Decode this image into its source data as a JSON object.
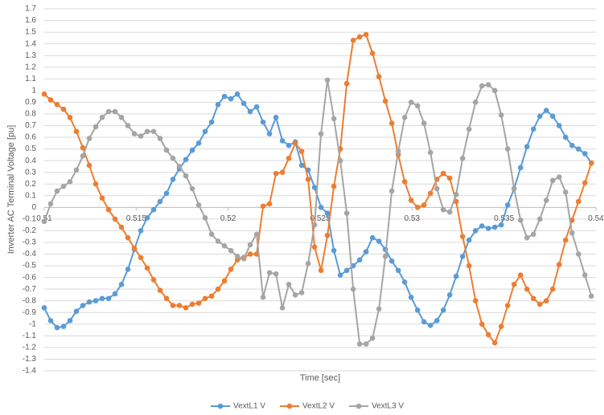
{
  "chart_data": {
    "type": "line",
    "xlabel": "Time [sec]",
    "ylabel": "Inverter AC Terminal Voltage [pu]",
    "xlim": [
      0.51,
      0.54
    ],
    "xticks": [
      0.51,
      0.515,
      0.52,
      0.525,
      0.53,
      0.535,
      0.54
    ],
    "ylim": [
      -1.4,
      1.7
    ],
    "yticks": [
      -1.4,
      -1.3,
      -1.2,
      -1.1,
      -1,
      -0.9,
      -0.8,
      -0.7,
      -0.6,
      -0.5,
      -0.4,
      -0.3,
      -0.2,
      -0.1,
      0,
      0.1,
      0.2,
      0.3,
      0.4,
      0.5,
      0.6,
      0.7,
      0.8,
      0.9,
      1,
      1.1,
      1.2,
      1.3,
      1.4,
      1.5,
      1.6,
      1.7
    ],
    "grid": true,
    "legend": "bottom",
    "x": [
      0.51,
      0.51035,
      0.5107,
      0.51105,
      0.5114,
      0.51175,
      0.5121,
      0.51245,
      0.5128,
      0.51315,
      0.5135,
      0.51385,
      0.5142,
      0.51455,
      0.5149,
      0.51525,
      0.5156,
      0.51595,
      0.5163,
      0.51665,
      0.517,
      0.51735,
      0.5177,
      0.51805,
      0.5184,
      0.51875,
      0.5191,
      0.51945,
      0.5198,
      0.52015,
      0.5205,
      0.52085,
      0.5212,
      0.52155,
      0.5219,
      0.52225,
      0.5226,
      0.52295,
      0.5233,
      0.52365,
      0.524,
      0.52435,
      0.5247,
      0.52505,
      0.5254,
      0.52575,
      0.5261,
      0.52645,
      0.5268,
      0.52715,
      0.5275,
      0.52785,
      0.5282,
      0.52855,
      0.5289,
      0.52925,
      0.5296,
      0.52995,
      0.5303,
      0.53065,
      0.531,
      0.53135,
      0.5317,
      0.53205,
      0.5324,
      0.53275,
      0.5331,
      0.53345,
      0.5338,
      0.53415,
      0.5345,
      0.53485,
      0.5352,
      0.53555,
      0.5359,
      0.53625,
      0.5366,
      0.53695,
      0.5373,
      0.53765,
      0.538,
      0.53835,
      0.5387,
      0.53905,
      0.5394,
      0.53975
    ],
    "series": [
      {
        "name": "VextL1 V",
        "color": "#5b9bd5",
        "values": [
          -0.86,
          -0.97,
          -1.03,
          -1.02,
          -0.97,
          -0.89,
          -0.84,
          -0.81,
          -0.8,
          -0.78,
          -0.78,
          -0.74,
          -0.66,
          -0.53,
          -0.36,
          -0.2,
          -0.09,
          -0.02,
          0.05,
          0.12,
          0.24,
          0.33,
          0.41,
          0.49,
          0.55,
          0.65,
          0.73,
          0.88,
          0.95,
          0.93,
          0.97,
          0.89,
          0.82,
          0.86,
          0.73,
          0.63,
          0.77,
          0.57,
          0.53,
          0.56,
          0.36,
          0.32,
          0.17,
          0.0,
          -0.05,
          -0.37,
          -0.58,
          -0.54,
          -0.5,
          -0.45,
          -0.38,
          -0.26,
          -0.29,
          -0.36,
          -0.46,
          -0.54,
          -0.64,
          -0.77,
          -0.88,
          -0.98,
          -1.01,
          -0.97,
          -0.88,
          -0.75,
          -0.59,
          -0.42,
          -0.28,
          -0.2,
          -0.16,
          -0.18,
          -0.17,
          -0.15,
          0.02,
          0.16,
          0.34,
          0.52,
          0.67,
          0.78,
          0.83,
          0.78,
          0.7,
          0.6,
          0.53,
          0.5,
          0.46,
          0.38
        ]
      },
      {
        "name": "VextL2 V",
        "color": "#ed7d31",
        "values": [
          0.97,
          0.92,
          0.88,
          0.84,
          0.77,
          0.65,
          0.51,
          0.36,
          0.2,
          0.08,
          -0.02,
          -0.1,
          -0.17,
          -0.26,
          -0.35,
          -0.43,
          -0.52,
          -0.62,
          -0.71,
          -0.78,
          -0.84,
          -0.84,
          -0.86,
          -0.83,
          -0.82,
          -0.78,
          -0.76,
          -0.7,
          -0.63,
          -0.53,
          -0.45,
          -0.43,
          -0.4,
          -0.4,
          0.01,
          0.03,
          0.29,
          0.3,
          0.42,
          0.55,
          0.48,
          0.24,
          -0.34,
          -0.54,
          -0.24,
          0.18,
          0.5,
          1.06,
          1.43,
          1.46,
          1.48,
          1.32,
          1.12,
          0.91,
          0.72,
          0.45,
          0.22,
          0.06,
          0.0,
          0.02,
          0.12,
          0.24,
          0.29,
          0.25,
          0.05,
          -0.25,
          -0.5,
          -0.8,
          -1.0,
          -1.09,
          -1.16,
          -1.02,
          -0.84,
          -0.66,
          -0.58,
          -0.7,
          -0.78,
          -0.83,
          -0.8,
          -0.7,
          -0.49,
          -0.28,
          -0.11,
          0.05,
          0.21,
          0.38
        ]
      },
      {
        "name": "VextL3 V",
        "color": "#a5a5a5",
        "values": [
          -0.12,
          0.03,
          0.14,
          0.18,
          0.22,
          0.32,
          0.44,
          0.59,
          0.69,
          0.77,
          0.82,
          0.82,
          0.77,
          0.7,
          0.63,
          0.61,
          0.65,
          0.65,
          0.59,
          0.49,
          0.42,
          0.35,
          0.27,
          0.16,
          0.02,
          -0.09,
          -0.23,
          -0.29,
          -0.33,
          -0.37,
          -0.42,
          -0.44,
          -0.32,
          -0.23,
          -0.77,
          -0.56,
          -0.57,
          -0.86,
          -0.66,
          -0.75,
          -0.73,
          -0.48,
          -0.15,
          0.63,
          1.09,
          0.76,
          0.4,
          -0.05,
          -0.7,
          -1.17,
          -1.17,
          -1.12,
          -0.87,
          -0.42,
          0.14,
          0.48,
          0.77,
          0.9,
          0.87,
          0.72,
          0.47,
          0.16,
          -0.02,
          -0.04,
          0.11,
          0.42,
          0.67,
          0.9,
          1.04,
          1.05,
          1.0,
          0.79,
          0.5,
          0.16,
          -0.11,
          -0.26,
          -0.23,
          -0.1,
          0.06,
          0.23,
          0.26,
          0.13,
          -0.22,
          -0.4,
          -0.58,
          -0.76
        ]
      }
    ]
  }
}
